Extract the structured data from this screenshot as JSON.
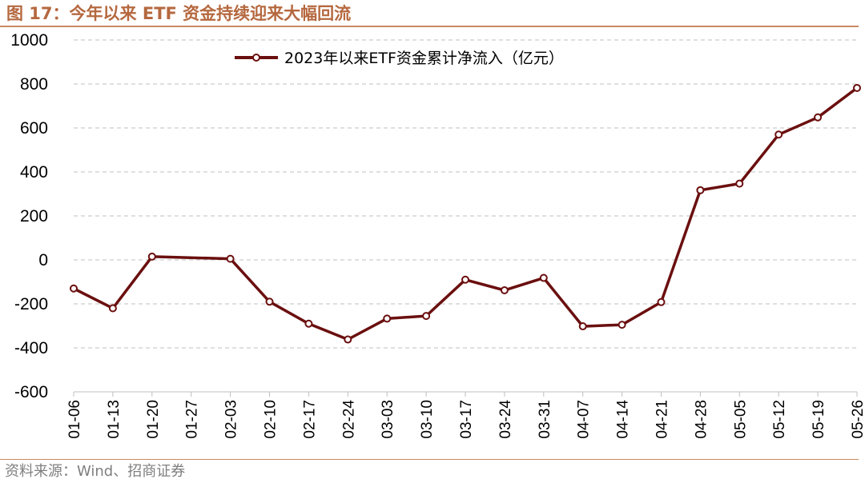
{
  "title": "图 17：今年以来 ETF 资金持续迎来大幅回流",
  "source": "资料来源：Wind、招商证券",
  "colors": {
    "line": "#6b0f0f",
    "accent": "#b5683f",
    "grid": "#bfbfbf"
  },
  "chart_data": {
    "type": "line",
    "categories": [
      "01-06",
      "01-13",
      "01-20",
      "01-27",
      "02-03",
      "02-10",
      "02-17",
      "02-24",
      "03-03",
      "03-10",
      "03-17",
      "03-24",
      "03-31",
      "04-07",
      "04-14",
      "04-21",
      "04-28",
      "05-05",
      "05-12",
      "05-19",
      "05-26"
    ],
    "series": [
      {
        "name": "2023年以来ETF资金累计净流入（亿元）",
        "values": [
          -130,
          -220,
          15,
          null,
          5,
          -190,
          -290,
          -362,
          -267,
          -255,
          -90,
          -138,
          -82,
          -302,
          -295,
          -192,
          317,
          347,
          570,
          648,
          782
        ]
      }
    ],
    "yticks": [
      1000,
      800,
      600,
      400,
      200,
      0,
      -200,
      -400,
      -600
    ],
    "ylim": [
      -600,
      1000
    ],
    "grid": true,
    "legend_position": "top-center"
  }
}
